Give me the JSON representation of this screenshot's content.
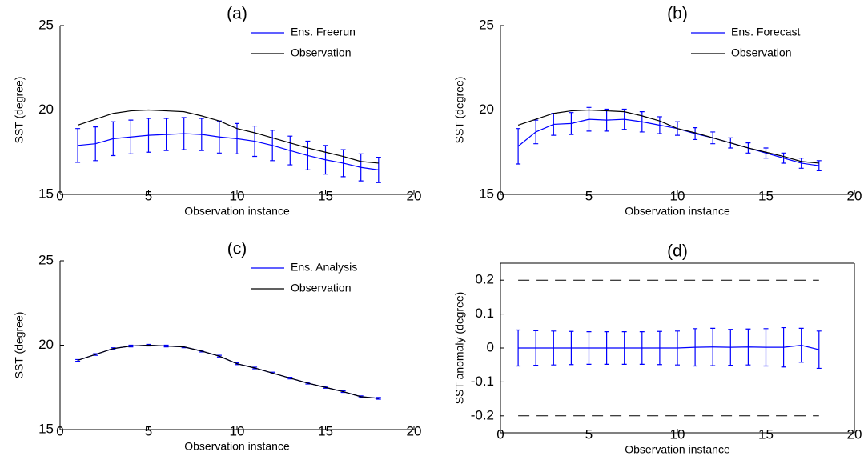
{
  "chart_data": [
    {
      "type": "errorbar-line",
      "title": "(a)",
      "x_label": "Observation instance",
      "y_label": "SST (degree)",
      "x": [
        1,
        2,
        3,
        4,
        5,
        6,
        7,
        8,
        9,
        10,
        11,
        12,
        13,
        14,
        15,
        16,
        17,
        18
      ],
      "xlim": [
        0,
        20
      ],
      "xticks": [
        0,
        5,
        10,
        15,
        20
      ],
      "ylim": [
        15,
        25
      ],
      "yticks": [
        15,
        20,
        25
      ],
      "legend": "upper right",
      "box": false,
      "series": [
        {
          "name": "Ens. Freerun",
          "color": "#0000ff",
          "values": [
            17.9,
            18.0,
            18.3,
            18.4,
            18.5,
            18.55,
            18.6,
            18.55,
            18.4,
            18.3,
            18.15,
            17.9,
            17.6,
            17.3,
            17.05,
            16.85,
            16.6,
            16.45
          ],
          "errors": [
            1.0,
            1.0,
            1.0,
            1.0,
            1.0,
            0.95,
            0.95,
            0.95,
            0.95,
            0.9,
            0.9,
            0.9,
            0.85,
            0.85,
            0.85,
            0.8,
            0.8,
            0.75
          ]
        },
        {
          "name": "Observation",
          "color": "#000000",
          "values": [
            19.1,
            19.45,
            19.8,
            19.95,
            20.0,
            19.95,
            19.9,
            19.65,
            19.35,
            18.9,
            18.65,
            18.35,
            18.05,
            17.75,
            17.5,
            17.25,
            16.95,
            16.85
          ]
        }
      ]
    },
    {
      "type": "errorbar-line",
      "title": "(b)",
      "x_label": "Observation instance",
      "y_label": "SST (degree)",
      "x": [
        1,
        2,
        3,
        4,
        5,
        6,
        7,
        8,
        9,
        10,
        11,
        12,
        13,
        14,
        15,
        16,
        17,
        18
      ],
      "xlim": [
        0,
        20
      ],
      "xticks": [
        0,
        5,
        10,
        15,
        20
      ],
      "ylim": [
        15,
        25
      ],
      "yticks": [
        15,
        20,
        25
      ],
      "legend": "upper right",
      "box": false,
      "series": [
        {
          "name": "Ens. Forecast",
          "color": "#0000ff",
          "values": [
            17.85,
            18.7,
            19.15,
            19.2,
            19.45,
            19.4,
            19.45,
            19.3,
            19.1,
            18.9,
            18.6,
            18.35,
            18.05,
            17.75,
            17.45,
            17.15,
            16.85,
            16.7
          ],
          "errors": [
            1.05,
            0.7,
            0.65,
            0.65,
            0.7,
            0.65,
            0.6,
            0.6,
            0.5,
            0.4,
            0.35,
            0.35,
            0.3,
            0.3,
            0.3,
            0.3,
            0.3,
            0.3
          ]
        },
        {
          "name": "Observation",
          "color": "#000000",
          "values": [
            19.1,
            19.45,
            19.8,
            19.95,
            20.0,
            19.95,
            19.9,
            19.65,
            19.35,
            18.9,
            18.65,
            18.35,
            18.05,
            17.75,
            17.5,
            17.25,
            16.95,
            16.85
          ]
        }
      ]
    },
    {
      "type": "errorbar-line",
      "title": "(c)",
      "x_label": "Observation instance",
      "y_label": "SST (degree)",
      "x": [
        1,
        2,
        3,
        4,
        5,
        6,
        7,
        8,
        9,
        10,
        11,
        12,
        13,
        14,
        15,
        16,
        17,
        18
      ],
      "xlim": [
        0,
        20
      ],
      "xticks": [
        0,
        5,
        10,
        15,
        20
      ],
      "ylim": [
        15,
        25
      ],
      "yticks": [
        15,
        20,
        25
      ],
      "legend": "upper right",
      "box": false,
      "series": [
        {
          "name": "Ens. Analysis",
          "color": "#0000ff",
          "values": [
            19.1,
            19.45,
            19.8,
            19.95,
            20.0,
            19.95,
            19.9,
            19.65,
            19.35,
            18.9,
            18.65,
            18.35,
            18.05,
            17.75,
            17.5,
            17.25,
            16.95,
            16.85
          ],
          "errors": [
            0.05,
            0.05,
            0.05,
            0.05,
            0.05,
            0.05,
            0.05,
            0.05,
            0.05,
            0.05,
            0.05,
            0.05,
            0.05,
            0.05,
            0.05,
            0.05,
            0.05,
            0.05
          ]
        },
        {
          "name": "Observation",
          "color": "#000000",
          "values": [
            19.1,
            19.45,
            19.8,
            19.95,
            20.0,
            19.95,
            19.9,
            19.65,
            19.35,
            18.9,
            18.65,
            18.35,
            18.05,
            17.75,
            17.5,
            17.25,
            16.95,
            16.85
          ]
        }
      ]
    },
    {
      "type": "errorbar-line",
      "title": "(d)",
      "x_label": "Observation instance",
      "y_label": "SST anomaly (degree)",
      "x": [
        1,
        2,
        3,
        4,
        5,
        6,
        7,
        8,
        9,
        10,
        11,
        12,
        13,
        14,
        15,
        16,
        17,
        18
      ],
      "xlim": [
        0,
        20
      ],
      "xticks": [
        0,
        5,
        10,
        15,
        20
      ],
      "ylim": [
        -0.25,
        0.25
      ],
      "yticks": [
        -0.2,
        -0.1,
        0,
        0.1,
        0.2
      ],
      "box": true,
      "hlines": [
        0.2,
        -0.2
      ],
      "hline_color": "#000000",
      "series": [
        {
          "color": "#0000ff",
          "values": [
            0,
            0,
            0,
            0,
            0,
            0,
            0,
            0,
            0,
            0,
            0.002,
            0.003,
            0.002,
            0.003,
            0.002,
            0.002,
            0.008,
            -0.005
          ],
          "errors": [
            0.053,
            0.051,
            0.05,
            0.049,
            0.048,
            0.048,
            0.048,
            0.048,
            0.049,
            0.05,
            0.055,
            0.055,
            0.053,
            0.053,
            0.055,
            0.058,
            0.05,
            0.055
          ]
        }
      ]
    }
  ]
}
